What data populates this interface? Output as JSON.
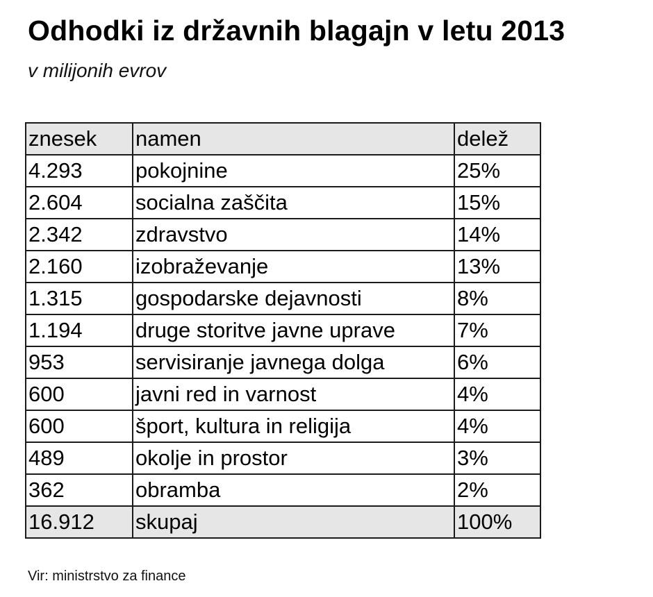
{
  "header": {
    "title": "Odhodki iz državnih blagajn v letu 2013",
    "subtitle": "v milijonih evrov"
  },
  "table": {
    "columns": [
      "znesek",
      "namen",
      "delež"
    ],
    "rows": [
      {
        "amount": "4.293",
        "purpose": "pokojnine",
        "share": "25%"
      },
      {
        "amount": "2.604",
        "purpose": "socialna zaščita",
        "share": "15%"
      },
      {
        "amount": "2.342",
        "purpose": "zdravstvo",
        "share": "14%"
      },
      {
        "amount": "2.160",
        "purpose": "izobraževanje",
        "share": "13%"
      },
      {
        "amount": "1.315",
        "purpose": "gospodarske dejavnosti",
        "share": "8%"
      },
      {
        "amount": "1.194",
        "purpose": "druge storitve javne uprave",
        "share": "7%"
      },
      {
        "amount": "953",
        "purpose": "servisiranje javnega dolga",
        "share": "6%"
      },
      {
        "amount": "600",
        "purpose": "javni red in varnost",
        "share": "4%"
      },
      {
        "amount": "600",
        "purpose": "šport, kultura in religija",
        "share": "4%"
      },
      {
        "amount": "489",
        "purpose": "okolje in prostor",
        "share": "3%"
      },
      {
        "amount": "362",
        "purpose": "obramba",
        "share": "2%"
      }
    ],
    "total": {
      "amount": "16.912",
      "purpose": "skupaj",
      "share": "100%"
    }
  },
  "footer": {
    "source": "Vir: ministrstvo za finance"
  },
  "colors": {
    "header_fill": "#e6e6e6",
    "border": "#1a1a1a"
  }
}
